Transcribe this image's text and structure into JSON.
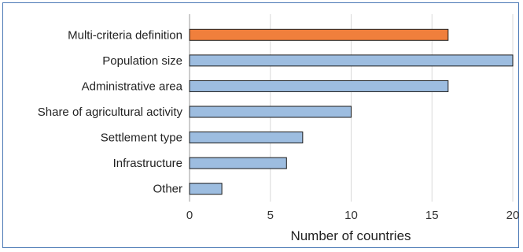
{
  "chart_data": {
    "type": "bar",
    "orientation": "horizontal",
    "categories": [
      "Multi-criteria definition",
      "Population size",
      "Administrative area",
      "Share of agricultural activity",
      "Settlement type",
      "Infrastructure",
      "Other"
    ],
    "values": [
      16,
      20,
      16,
      10,
      7,
      6,
      2
    ],
    "highlight_index": 0,
    "highlight_color": "#f07f3c",
    "bar_color": "#9dbde0",
    "bar_edge_color": "#1a1a1a",
    "xlabel": "Number of countries",
    "xlim": [
      0,
      20
    ],
    "xticks": [
      "0",
      "5",
      "10",
      "15",
      "20"
    ],
    "grid": true,
    "legend": "none"
  }
}
